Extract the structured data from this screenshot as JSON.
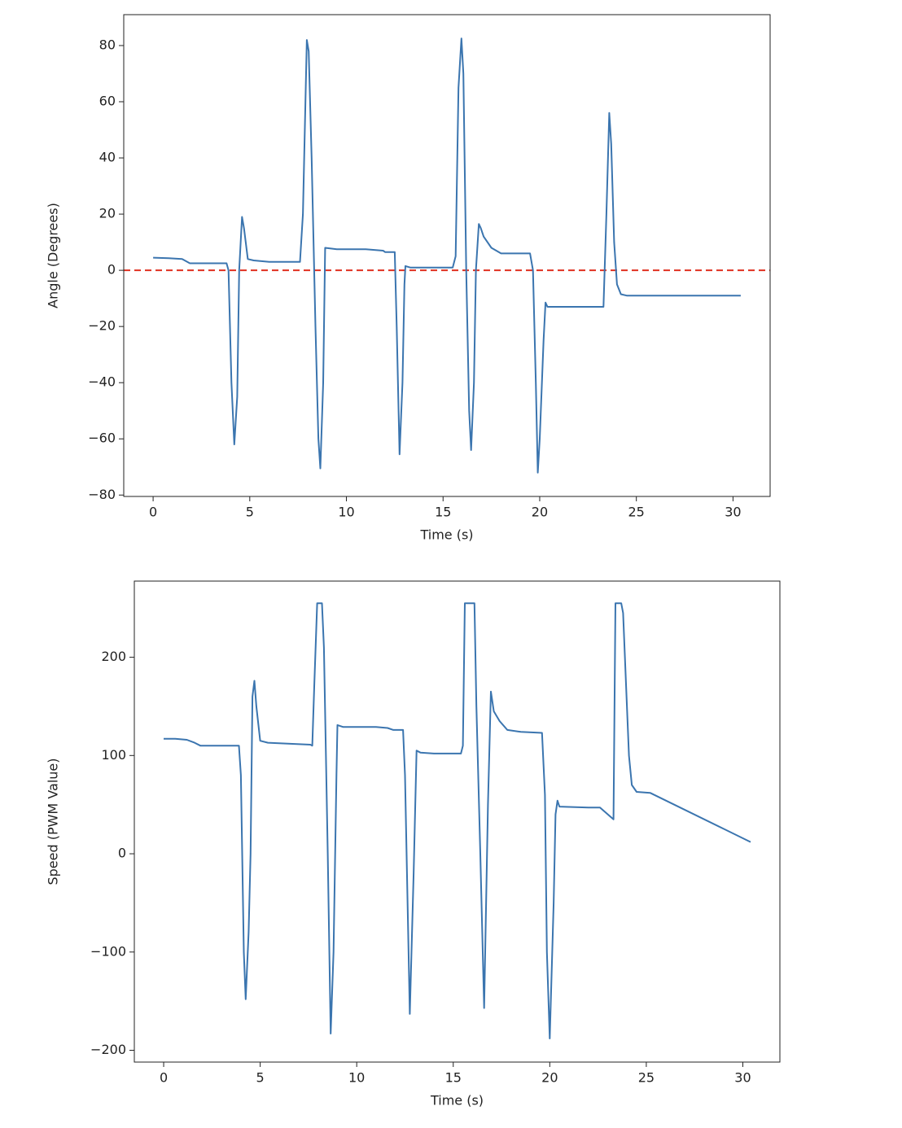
{
  "chart_data": [
    {
      "type": "line",
      "xlabel": "Time (s)",
      "ylabel": "Angle (Degrees)",
      "xlim": [
        -1.52,
        31.92
      ],
      "ylim": [
        -80.5,
        91
      ],
      "xticks": [
        0,
        5,
        10,
        15,
        20,
        25,
        30
      ],
      "yticks": [
        {
          "value": -80,
          "label": "−80"
        },
        {
          "value": -60,
          "label": "−60"
        },
        {
          "value": -40,
          "label": "−40"
        },
        {
          "value": -20,
          "label": "−20"
        },
        0,
        20,
        40,
        60,
        80
      ],
      "hline": {
        "value": 0,
        "color": "#e03020",
        "style": "dashed"
      },
      "x": [
        0,
        0.8,
        1.5,
        1.9,
        3.8,
        3.9,
        4.05,
        4.2,
        4.35,
        4.45,
        4.6,
        4.7,
        4.9,
        5.2,
        6,
        7.6,
        7.75,
        7.95,
        8.05,
        8.2,
        8.4,
        8.55,
        8.65,
        8.8,
        8.9,
        9.5,
        11,
        11.9,
        12,
        12.5,
        12.6,
        12.75,
        12.9,
        13,
        13.05,
        13.3,
        15.5,
        15.65,
        15.8,
        15.95,
        16.05,
        16.2,
        16.35,
        16.45,
        16.6,
        16.7,
        16.85,
        16.95,
        17.1,
        17.5,
        18,
        19.5,
        19.65,
        19.8,
        19.9,
        20.0,
        20.2,
        20.3,
        20.4,
        21,
        23.3,
        23.45,
        23.6,
        23.7,
        23.85,
        24.0,
        24.2,
        24.5,
        30.4
      ],
      "series": [
        {
          "color": "#3b75af",
          "values": [
            4.5,
            4.3,
            4,
            2.5,
            2.5,
            0,
            -40,
            -62,
            -45,
            0,
            19,
            15,
            4,
            3.5,
            3,
            3,
            20,
            82,
            78,
            40,
            -20,
            -60,
            -70.5,
            -40,
            8,
            7.5,
            7.5,
            7,
            6.5,
            6.5,
            -20,
            -65.5,
            -40,
            -5,
            1.5,
            1,
            1,
            5,
            65,
            82.5,
            70,
            0,
            -50,
            -64,
            -40,
            0,
            16.5,
            15,
            12,
            8,
            6,
            6,
            0,
            -40,
            -72,
            -60,
            -25,
            -11.5,
            -13,
            -13,
            -13,
            20,
            56,
            45,
            10,
            -5,
            -8.5,
            -9,
            -9
          ]
        }
      ]
    },
    {
      "type": "line",
      "xlabel": "Time (s)",
      "ylabel": "Speed (PWM Value)",
      "xlim": [
        -1.52,
        31.92
      ],
      "ylim": [
        -212,
        277.5
      ],
      "xticks": [
        0,
        5,
        10,
        15,
        20,
        25,
        30
      ],
      "yticks": [
        {
          "value": -200,
          "label": "−200"
        },
        {
          "value": -100,
          "label": "−100"
        },
        0,
        100,
        200
      ],
      "x": [
        0,
        0.6,
        1.2,
        1.6,
        1.9,
        3.9,
        4.0,
        4.15,
        4.25,
        4.4,
        4.5,
        4.6,
        4.7,
        4.8,
        5.0,
        5.4,
        7.6,
        7.7,
        7.8,
        7.95,
        8.2,
        8.3,
        8.5,
        8.65,
        8.8,
        8.95,
        9.0,
        9.3,
        11,
        11.6,
        11.9,
        12.4,
        12.5,
        12.75,
        12.95,
        13.1,
        13.3,
        14,
        15.4,
        15.5,
        15.6,
        16.1,
        16.2,
        16.4,
        16.6,
        16.8,
        16.95,
        17.1,
        17.4,
        17.8,
        18.5,
        19.6,
        19.75,
        19.85,
        20.0,
        20.2,
        20.3,
        20.4,
        20.5,
        22,
        22.6,
        23.3,
        23.4,
        23.7,
        23.8,
        24.1,
        24.25,
        24.5,
        25.2,
        30.4
      ],
      "series": [
        {
          "color": "#3b75af",
          "values": [
            117,
            117,
            116,
            113,
            110,
            110,
            80,
            -100,
            -148,
            -80,
            0,
            160,
            176,
            150,
            115,
            113,
            111,
            110,
            170,
            255,
            255,
            210,
            0,
            -183,
            -100,
            80,
            131,
            129,
            129,
            128,
            126,
            126,
            80,
            -163,
            -20,
            105,
            103,
            102,
            102,
            110,
            255,
            255,
            150,
            0,
            -157,
            50,
            165,
            145,
            135,
            126,
            124,
            123,
            60,
            -100,
            -188,
            -50,
            40,
            54,
            48,
            47,
            47,
            35,
            255,
            255,
            245,
            100,
            70,
            63,
            62,
            12
          ]
        }
      ]
    }
  ]
}
